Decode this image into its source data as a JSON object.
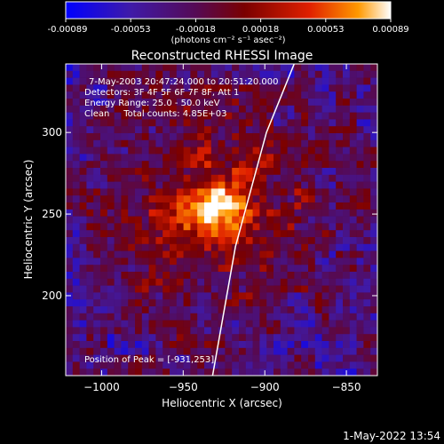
{
  "colorbar": {
    "ticks": [
      "-0.00089",
      "-0.00053",
      "-0.00018",
      "0.00018",
      "0.00053",
      "0.00089"
    ],
    "unit_label": "(photons cm⁻² s⁻¹ asec⁻²)",
    "colors": [
      "#0000ff",
      "#3f1aa8",
      "#550a55",
      "#7a0000",
      "#e02000",
      "#ff9900",
      "#ffffff"
    ]
  },
  "chart_data": {
    "type": "heatmap",
    "title": "Reconstructed RHESSI Image",
    "xlabel": "Heliocentric X (arcsec)",
    "ylabel": "Heliocentric Y (arcsec)",
    "xlim": [
      -1022,
      -831
    ],
    "ylim": [
      151,
      342
    ],
    "x_ticks": [
      -1000,
      -950,
      -900,
      -850
    ],
    "y_ticks": [
      200,
      250,
      300
    ],
    "x_tick_labels": [
      "−1000",
      "−950",
      "−900",
      "−850"
    ],
    "y_tick_labels": [
      "200",
      "250",
      "300"
    ],
    "peak": [
      -931,
      253
    ],
    "info_lines": [
      "7-May-2003 20:47:24.000 to 20:51:20.000",
      "Detectors: 3F 4F 5F 6F 7F 8F, Att 1",
      "Energy Range: 25.0 - 50.0 keV",
      "Clean     Total counts: 4.85E+03"
    ],
    "peak_label": "Position of Peak = [-931,253]",
    "limb_curve": [
      [
        -932,
        151
      ],
      [
        -918,
        230
      ],
      [
        -899,
        300
      ],
      [
        -882,
        342
      ]
    ]
  },
  "footer_timestamp": "1-May-2022 13:54"
}
